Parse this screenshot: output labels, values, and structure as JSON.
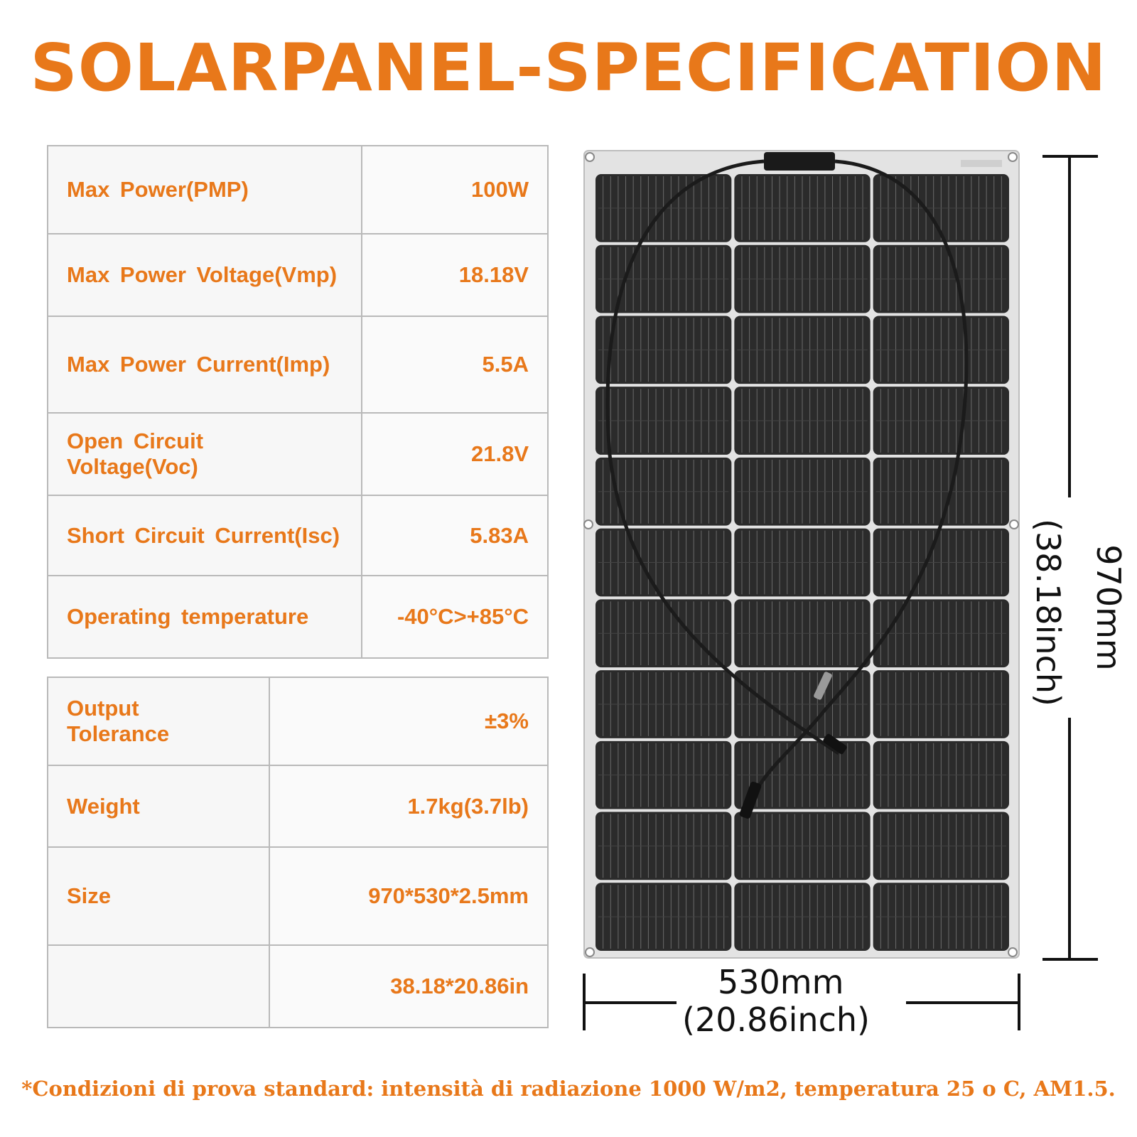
{
  "title": "SOLARPANEL-SPECIFICATION",
  "spec_table_1": [
    {
      "label": "Max Power(PMP)",
      "value": "100W"
    },
    {
      "label": "Max Power Voltage(Vmp)",
      "value": "18.18V"
    },
    {
      "label": "Max Power Current(Imp)",
      "value": "5.5A"
    },
    {
      "label": "Open Circuit Voltage(Voc)",
      "value": "21.8V"
    },
    {
      "label": "Short Circuit Current(Isc)",
      "value": "5.83A"
    },
    {
      "label": "Operating temperature",
      "value": "-40°C>+85°C"
    }
  ],
  "spec_table_2": [
    {
      "label": "Output Tolerance",
      "value": "±3%"
    },
    {
      "label": "Weight",
      "value": "1.7kg(3.7lb)"
    },
    {
      "label": "Size",
      "value": "970*530*2.5mm"
    },
    {
      "label": "",
      "value": "38.18*20.86in"
    }
  ],
  "dimensions": {
    "width_mm": "530mm",
    "width_inch": "(20.86inch)",
    "height_mm": "970mm",
    "height_inch": "(38.18inch)"
  },
  "footnote": "*Condizioni di prova standard: intensità di radiazione 1000 W/m2, temperatura 25 o C, AM1.5.",
  "colors": {
    "accent": "#e8781a",
    "table_border": "#b9b9b9",
    "panel_cell": "#2a2a2a",
    "panel_frame": "#dcdcdc"
  }
}
